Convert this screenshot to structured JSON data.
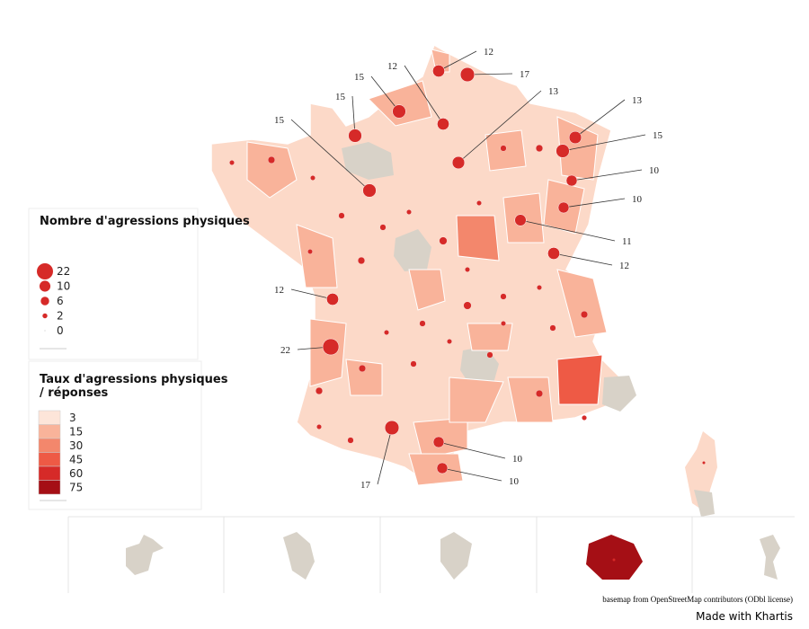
{
  "size_legend": {
    "title": "Nombre d'agressions physiques",
    "values": [
      22,
      10,
      6,
      2,
      0
    ]
  },
  "color_legend": {
    "title": "Taux d'agressions physiques / réponses",
    "classes": [
      {
        "label": 3,
        "color": "#fde5d9"
      },
      {
        "label": 15,
        "color": "#f9b39a"
      },
      {
        "label": 30,
        "color": "#f3876c"
      },
      {
        "label": 45,
        "color": "#ee5a45"
      },
      {
        "label": 60,
        "color": "#d62a28"
      },
      {
        "label": 75,
        "color": "#a50f15"
      }
    ]
  },
  "callouts": [
    12,
    17,
    15,
    12,
    13,
    15,
    15,
    13,
    15,
    10,
    10,
    11,
    12,
    12,
    22,
    17,
    10,
    10
  ],
  "circles": [
    2,
    4,
    2,
    3,
    2,
    4,
    3,
    2,
    5,
    2,
    3,
    4,
    2,
    3,
    2,
    4,
    3,
    2,
    5,
    3,
    2,
    4,
    3,
    2,
    3,
    4,
    2,
    3,
    2,
    4
  ],
  "footer": {
    "credit": "basemap from OpenStreetMap contributors (ODbl license)",
    "made_with": "Made with Khartis"
  }
}
